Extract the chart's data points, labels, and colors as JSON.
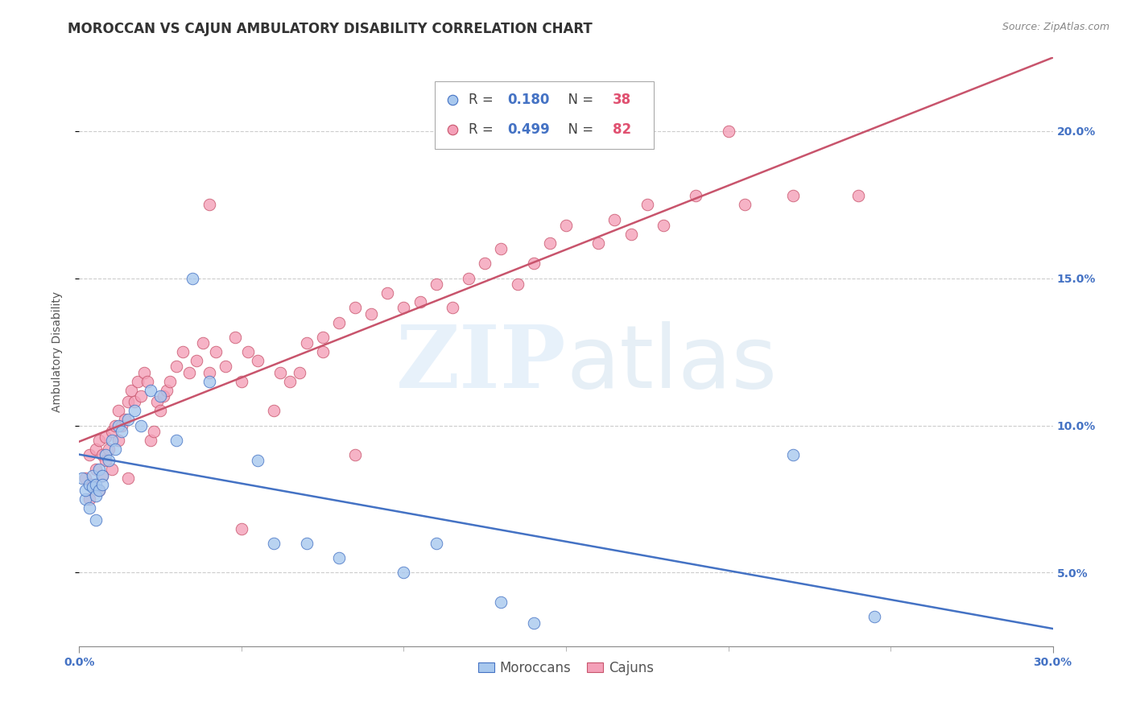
{
  "title": "MOROCCAN VS CAJUN AMBULATORY DISABILITY CORRELATION CHART",
  "source": "Source: ZipAtlas.com",
  "ylabel": "Ambulatory Disability",
  "xlim": [
    0.0,
    0.3
  ],
  "ylim": [
    0.025,
    0.225
  ],
  "moroccan_R": 0.18,
  "moroccan_N": 38,
  "cajun_R": 0.499,
  "cajun_N": 82,
  "moroccan_color": "#A8C8EE",
  "cajun_color": "#F4A0B8",
  "moroccan_line_color": "#4472C4",
  "cajun_line_color": "#C8546C",
  "moroccan_x": [
    0.001,
    0.002,
    0.002,
    0.003,
    0.003,
    0.004,
    0.004,
    0.005,
    0.005,
    0.005,
    0.006,
    0.006,
    0.007,
    0.007,
    0.008,
    0.009,
    0.01,
    0.011,
    0.012,
    0.013,
    0.015,
    0.017,
    0.019,
    0.022,
    0.025,
    0.03,
    0.035,
    0.04,
    0.055,
    0.06,
    0.07,
    0.08,
    0.1,
    0.11,
    0.13,
    0.14,
    0.22,
    0.245
  ],
  "moroccan_y": [
    0.082,
    0.075,
    0.078,
    0.08,
    0.072,
    0.079,
    0.083,
    0.08,
    0.076,
    0.068,
    0.085,
    0.078,
    0.083,
    0.08,
    0.09,
    0.088,
    0.095,
    0.092,
    0.1,
    0.098,
    0.102,
    0.105,
    0.1,
    0.112,
    0.11,
    0.095,
    0.15,
    0.115,
    0.088,
    0.06,
    0.06,
    0.055,
    0.05,
    0.06,
    0.04,
    0.033,
    0.09,
    0.035
  ],
  "cajun_x": [
    0.002,
    0.003,
    0.003,
    0.004,
    0.005,
    0.005,
    0.006,
    0.006,
    0.007,
    0.007,
    0.008,
    0.008,
    0.009,
    0.01,
    0.01,
    0.011,
    0.012,
    0.012,
    0.013,
    0.014,
    0.015,
    0.015,
    0.016,
    0.017,
    0.018,
    0.019,
    0.02,
    0.021,
    0.022,
    0.023,
    0.024,
    0.025,
    0.026,
    0.027,
    0.028,
    0.03,
    0.032,
    0.034,
    0.036,
    0.038,
    0.04,
    0.042,
    0.045,
    0.048,
    0.05,
    0.052,
    0.055,
    0.06,
    0.062,
    0.065,
    0.068,
    0.07,
    0.075,
    0.08,
    0.085,
    0.09,
    0.095,
    0.1,
    0.105,
    0.11,
    0.115,
    0.12,
    0.125,
    0.13,
    0.135,
    0.14,
    0.145,
    0.15,
    0.16,
    0.165,
    0.17,
    0.175,
    0.18,
    0.19,
    0.2,
    0.205,
    0.22,
    0.24,
    0.05,
    0.04,
    0.085,
    0.075
  ],
  "cajun_y": [
    0.082,
    0.075,
    0.09,
    0.08,
    0.085,
    0.092,
    0.078,
    0.095,
    0.09,
    0.083,
    0.096,
    0.088,
    0.092,
    0.085,
    0.098,
    0.1,
    0.095,
    0.105,
    0.1,
    0.102,
    0.108,
    0.082,
    0.112,
    0.108,
    0.115,
    0.11,
    0.118,
    0.115,
    0.095,
    0.098,
    0.108,
    0.105,
    0.11,
    0.112,
    0.115,
    0.12,
    0.125,
    0.118,
    0.122,
    0.128,
    0.118,
    0.125,
    0.12,
    0.13,
    0.115,
    0.125,
    0.122,
    0.105,
    0.118,
    0.115,
    0.118,
    0.128,
    0.13,
    0.135,
    0.14,
    0.138,
    0.145,
    0.14,
    0.142,
    0.148,
    0.14,
    0.15,
    0.155,
    0.16,
    0.148,
    0.155,
    0.162,
    0.168,
    0.162,
    0.17,
    0.165,
    0.175,
    0.168,
    0.178,
    0.2,
    0.175,
    0.178,
    0.178,
    0.065,
    0.175,
    0.09,
    0.125
  ],
  "background_color": "#ffffff",
  "grid_color": "#cccccc",
  "title_fontsize": 12,
  "axis_label_fontsize": 10,
  "tick_fontsize": 10,
  "legend_fontsize": 12,
  "right_tick_color": "#4472C4",
  "N_color": "#E05070",
  "text_color": "#555555"
}
